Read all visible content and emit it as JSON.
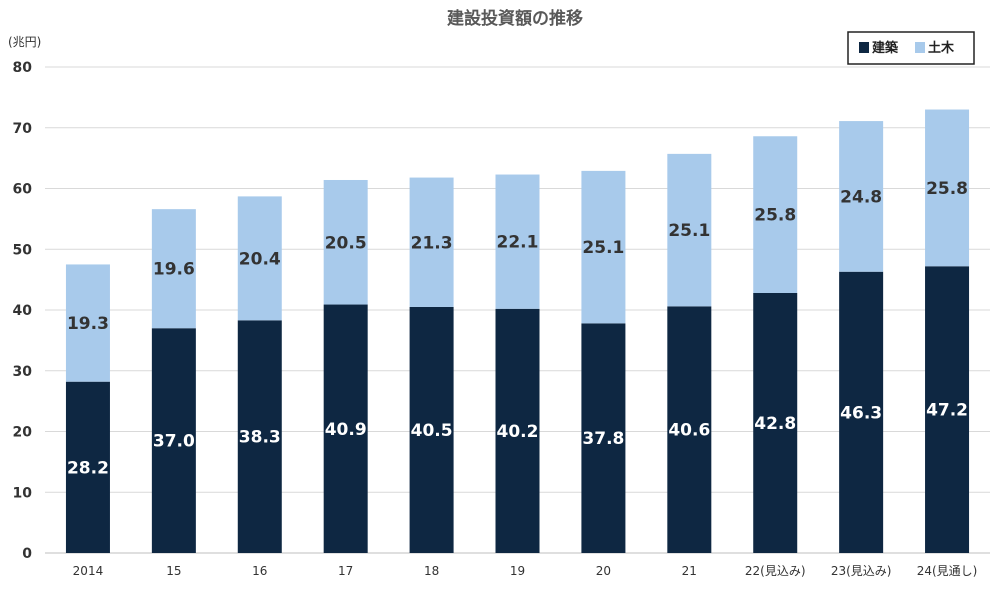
{
  "chart_data": {
    "type": "bar",
    "stacked": true,
    "title": "建設投資額の推移",
    "ylabel": "(兆円)",
    "xlabel": "",
    "ylim": [
      0,
      80
    ],
    "yticks": [
      "0",
      "10",
      "20",
      "30",
      "40",
      "50",
      "60",
      "70",
      "80"
    ],
    "grid": true,
    "legend_position": "top-right",
    "categories": [
      "2014",
      "15",
      "16",
      "17",
      "18",
      "19",
      "20",
      "21",
      "22(見込み)",
      "23(見込み)",
      "24(見通し)"
    ],
    "series": [
      {
        "name": "建築",
        "color": "#0e2742",
        "values": [
          28.2,
          37.0,
          38.3,
          40.9,
          40.5,
          40.2,
          37.8,
          40.6,
          42.8,
          46.3,
          47.2
        ],
        "labels": [
          "28.2",
          "37.0",
          "38.3",
          "40.9",
          "40.5",
          "40.2",
          "37.8",
          "40.6",
          "42.8",
          "46.3",
          "47.2"
        ]
      },
      {
        "name": "土木",
        "color": "#a8caeb",
        "values": [
          19.3,
          19.6,
          20.4,
          20.5,
          21.3,
          22.1,
          25.1,
          25.1,
          25.8,
          24.8,
          25.8
        ],
        "labels": [
          "19.3",
          "19.6",
          "20.4",
          "20.5",
          "21.3",
          "22.1",
          "25.1",
          "25.1",
          "25.8",
          "24.8",
          "25.8"
        ]
      }
    ]
  }
}
